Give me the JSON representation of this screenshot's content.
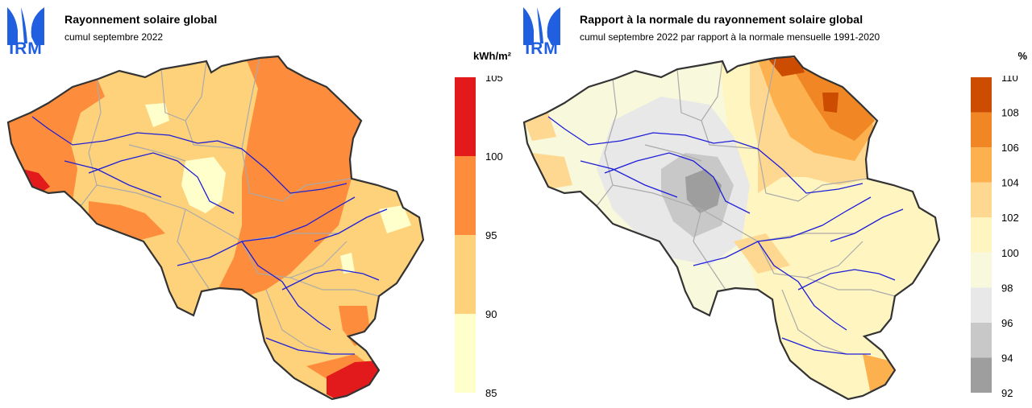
{
  "logo": {
    "text": "IRM",
    "color": "#1f5fe0"
  },
  "left": {
    "title": "Rayonnement solaire global",
    "subtitle": "cumul septembre 2022",
    "unit": "kWh/m²",
    "legend": {
      "bins": [
        {
          "from": 85,
          "to": 90,
          "color": "#ffffcc"
        },
        {
          "from": 90,
          "to": 95,
          "color": "#fed27a"
        },
        {
          "from": 95,
          "to": 100,
          "color": "#fd8d3c"
        },
        {
          "from": 100,
          "to": 105,
          "color": "#e31a1c"
        }
      ],
      "labels": [
        "105",
        "100",
        "95",
        "90",
        "85"
      ]
    }
  },
  "right": {
    "title": "Rapport à la normale du rayonnement solaire global",
    "subtitle": "cumul septembre 2022 par rapport à la normale mensuelle 1991-2020",
    "unit": "%",
    "legend": {
      "bins": [
        {
          "from": 92,
          "to": 94,
          "color": "#9e9e9e"
        },
        {
          "from": 94,
          "to": 96,
          "color": "#c8c8c8"
        },
        {
          "from": 96,
          "to": 98,
          "color": "#e8e8e8"
        },
        {
          "from": 98,
          "to": 100,
          "color": "#f8f8dc"
        },
        {
          "from": 100,
          "to": 102,
          "color": "#fff5c0"
        },
        {
          "from": 102,
          "to": 104,
          "color": "#fed890"
        },
        {
          "from": 104,
          "to": 106,
          "color": "#fdb04e"
        },
        {
          "from": 106,
          "to": 108,
          "color": "#f08724"
        },
        {
          "from": 108,
          "to": 110,
          "color": "#cc4c02"
        }
      ],
      "labels": [
        "110",
        "108",
        "106",
        "104",
        "102",
        "100",
        "98",
        "96",
        "94",
        "92"
      ]
    }
  }
}
